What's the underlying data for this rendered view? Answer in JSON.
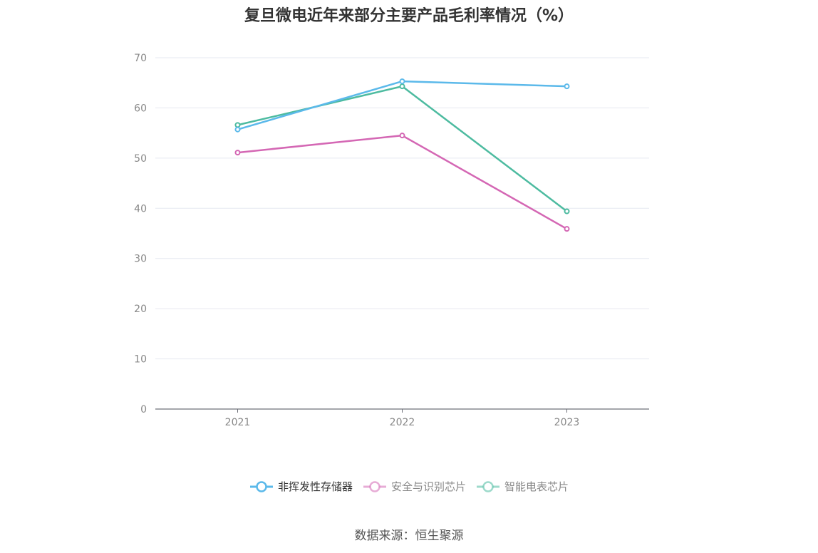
{
  "chart_data": {
    "type": "line",
    "title": "复旦微电近年来部分主要产品毛利率情况（%）",
    "categories": [
      "2021",
      "2022",
      "2023"
    ],
    "series": [
      {
        "name": "非挥发性存储器",
        "values": [
          55.7,
          65.3,
          64.3
        ],
        "color": "#5bb9ea"
      },
      {
        "name": "安全与识别芯片",
        "values": [
          51.1,
          54.5,
          35.9
        ],
        "color": "#d467b4"
      },
      {
        "name": "智能电表芯片",
        "values": [
          56.6,
          64.3,
          39.4
        ],
        "color": "#4dbba0"
      }
    ],
    "ylim": [
      0,
      70
    ],
    "yticks": [
      "0",
      "10",
      "20",
      "30",
      "40",
      "50",
      "60",
      "70"
    ],
    "grid": true,
    "legend_position": "bottom"
  },
  "source": "数据来源：恒生聚源"
}
